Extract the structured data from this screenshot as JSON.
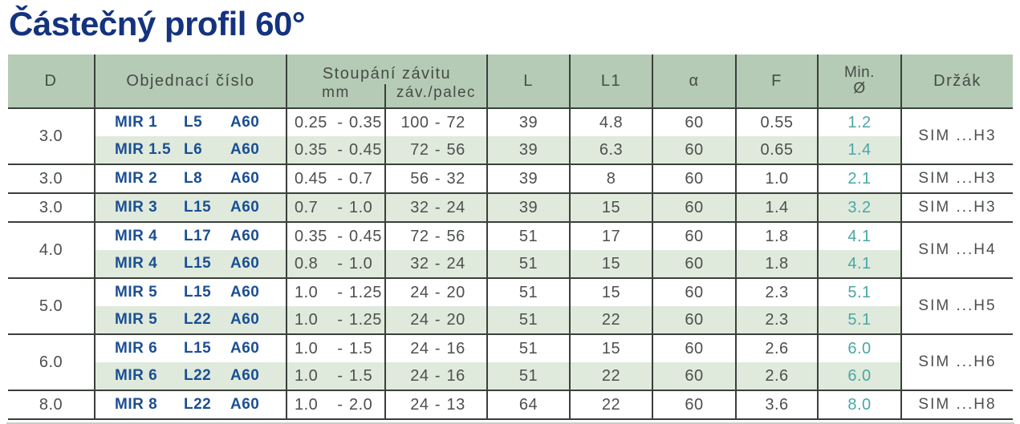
{
  "title": "Částečný profil 60°",
  "colors": {
    "title_text": "#14337f",
    "order_number_text": "#1b4f93",
    "min_diameter_text": "#49a7a6",
    "header_background": "#b5cbb5",
    "stripe_background": "#dfeadd",
    "grid_line": "#3a3f3a",
    "body_text": "#4c504c"
  },
  "table": {
    "dash": "-",
    "headers": {
      "d": "D",
      "order": "Objednací číslo",
      "pitch_group": "Stoupání závitu",
      "pitch_mm": "mm",
      "pitch_tpi": "záv./palec",
      "l": "L",
      "l1": "L1",
      "alpha": "α",
      "f": "F",
      "min_line1": "Min.",
      "min_line2": "Ø",
      "holder": "Držák"
    },
    "groups": [
      {
        "d": "3.0",
        "holder": "SIM ...H3",
        "rows": [
          {
            "order": [
              "MIR 1",
              "L5",
              "A60"
            ],
            "mm": [
              "0.25",
              "0.35"
            ],
            "tpi": [
              "100",
              "72"
            ],
            "l": "39",
            "l1": "4.8",
            "alpha": "60",
            "f": "0.55",
            "min": "1.2"
          },
          {
            "order": [
              "MIR 1.5",
              "L6",
              "A60"
            ],
            "mm": [
              "0.35",
              "0.45"
            ],
            "tpi": [
              "72",
              "56"
            ],
            "l": "39",
            "l1": "6.3",
            "alpha": "60",
            "f": "0.65",
            "min": "1.4"
          }
        ]
      },
      {
        "d": "3.0",
        "holder": "SIM ...H3",
        "rows": [
          {
            "order": [
              "MIR 2",
              "L8",
              "A60"
            ],
            "mm": [
              "0.45",
              "0.7"
            ],
            "tpi": [
              "56",
              "32"
            ],
            "l": "39",
            "l1": "8",
            "alpha": "60",
            "f": "1.0",
            "min": "2.1"
          }
        ]
      },
      {
        "d": "3.0",
        "holder": "SIM ...H3",
        "rows": [
          {
            "order": [
              "MIR 3",
              "L15",
              "A60"
            ],
            "mm": [
              "0.7",
              "1.0"
            ],
            "tpi": [
              "32",
              "24"
            ],
            "l": "39",
            "l1": "15",
            "alpha": "60",
            "f": "1.4",
            "min": "3.2"
          }
        ]
      },
      {
        "d": "4.0",
        "holder": "SIM ...H4",
        "rows": [
          {
            "order": [
              "MIR 4",
              "L17",
              "A60"
            ],
            "mm": [
              "0.35",
              "0.45"
            ],
            "tpi": [
              "72",
              "56"
            ],
            "l": "51",
            "l1": "17",
            "alpha": "60",
            "f": "1.8",
            "min": "4.1"
          },
          {
            "order": [
              "MIR 4",
              "L15",
              "A60"
            ],
            "mm": [
              "0.8",
              "1.0"
            ],
            "tpi": [
              "32",
              "24"
            ],
            "l": "51",
            "l1": "15",
            "alpha": "60",
            "f": "1.8",
            "min": "4.1"
          }
        ]
      },
      {
        "d": "5.0",
        "holder": "SIM ...H5",
        "rows": [
          {
            "order": [
              "MIR 5",
              "L15",
              "A60"
            ],
            "mm": [
              "1.0",
              "1.25"
            ],
            "tpi": [
              "24",
              "20"
            ],
            "l": "51",
            "l1": "15",
            "alpha": "60",
            "f": "2.3",
            "min": "5.1"
          },
          {
            "order": [
              "MIR 5",
              "L22",
              "A60"
            ],
            "mm": [
              "1.0",
              "1.25"
            ],
            "tpi": [
              "24",
              "20"
            ],
            "l": "51",
            "l1": "22",
            "alpha": "60",
            "f": "2.3",
            "min": "5.1"
          }
        ]
      },
      {
        "d": "6.0",
        "holder": "SIM ...H6",
        "rows": [
          {
            "order": [
              "MIR 6",
              "L15",
              "A60"
            ],
            "mm": [
              "1.0",
              "1.5"
            ],
            "tpi": [
              "24",
              "16"
            ],
            "l": "51",
            "l1": "15",
            "alpha": "60",
            "f": "2.6",
            "min": "6.0"
          },
          {
            "order": [
              "MIR 6",
              "L22",
              "A60"
            ],
            "mm": [
              "1.0",
              "1.5"
            ],
            "tpi": [
              "24",
              "16"
            ],
            "l": "51",
            "l1": "22",
            "alpha": "60",
            "f": "2.6",
            "min": "6.0"
          }
        ]
      },
      {
        "d": "8.0",
        "holder": "SIM ...H8",
        "rows": [
          {
            "order": [
              "MIR 8",
              "L22",
              "A60"
            ],
            "mm": [
              "1.0",
              "2.0"
            ],
            "tpi": [
              "24",
              "13"
            ],
            "l": "64",
            "l1": "22",
            "alpha": "60",
            "f": "3.6",
            "min": "8.0"
          }
        ]
      }
    ]
  }
}
